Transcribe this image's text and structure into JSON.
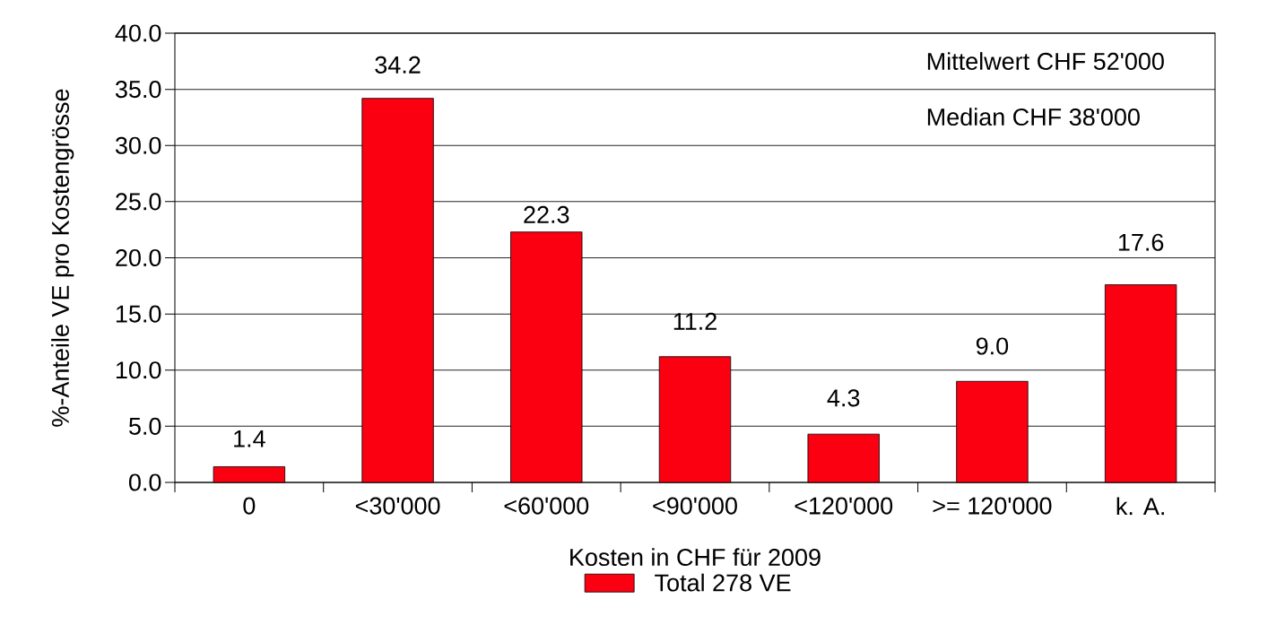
{
  "chart_data": {
    "type": "bar",
    "xlabel": "Kosten in CHF für 2009",
    "ylabel": "%-Anteile VE pro Kostengrösse",
    "categories": [
      "0",
      "<30'000",
      "<60'000",
      "<90'000",
      "<120'000",
      ">= 120'000",
      "k. A."
    ],
    "series": [
      {
        "name": "Total 278 VE",
        "color": "#fa0010",
        "values": [
          1.4,
          34.2,
          22.3,
          11.2,
          4.3,
          9.0,
          17.6
        ],
        "value_labels": [
          "1.4",
          "34.2",
          "22.3",
          "11.2",
          "4.3",
          "9.0",
          "17.6"
        ]
      }
    ],
    "ylim": [
      0,
      40
    ],
    "yticks": [
      {
        "value": 0,
        "label": "0.0"
      },
      {
        "value": 5,
        "label": "5.0"
      },
      {
        "value": 10,
        "label": "10.0"
      },
      {
        "value": 15,
        "label": "15.0"
      },
      {
        "value": 20,
        "label": "20.0"
      },
      {
        "value": 25,
        "label": "25.0"
      },
      {
        "value": 30,
        "label": "30.0"
      },
      {
        "value": 35,
        "label": "35.0"
      },
      {
        "value": 40,
        "label": "40.0"
      }
    ],
    "grid": "y",
    "legend": "bottom",
    "annotations": [
      "Mittelwert CHF 52'000",
      "Median CHF 38'000"
    ]
  }
}
